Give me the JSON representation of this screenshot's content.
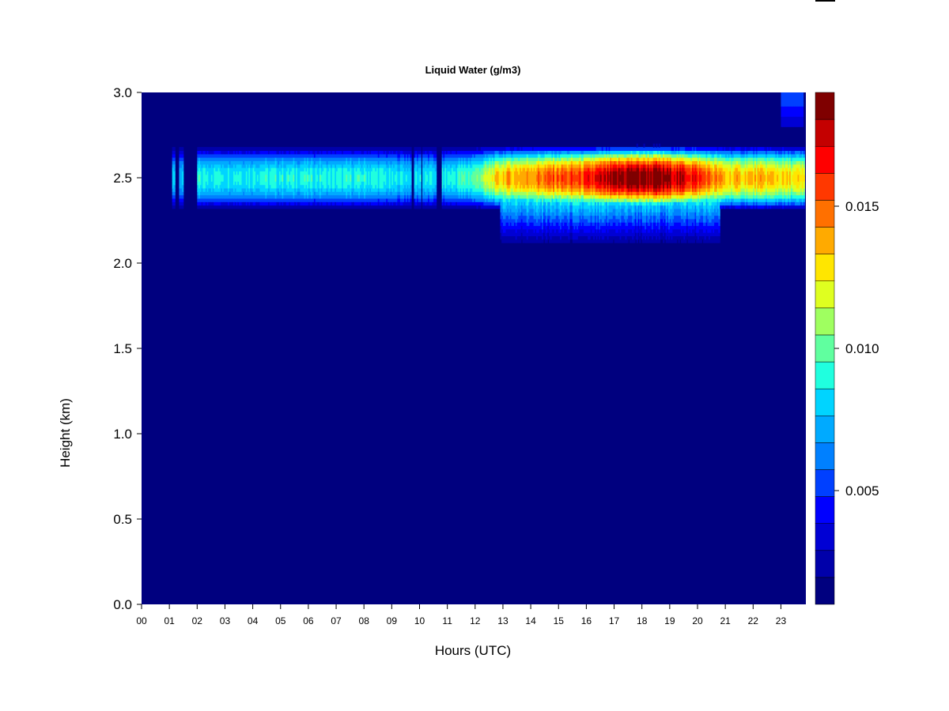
{
  "chart_data": {
    "type": "heatmap",
    "title": "Liquid Water (g/m3)",
    "xlabel": "Hours (UTC)",
    "ylabel": "Height (km)",
    "xlim": [
      0,
      24
    ],
    "ylim": [
      0.0,
      3.0
    ],
    "x_ticks": [
      0,
      1,
      2,
      3,
      4,
      5,
      6,
      7,
      8,
      9,
      10,
      11,
      12,
      13,
      14,
      15,
      16,
      17,
      18,
      19,
      20,
      21,
      22,
      23
    ],
    "x_tick_labels": [
      "00",
      "01",
      "02",
      "03",
      "04",
      "05",
      "06",
      "07",
      "08",
      "09",
      "10",
      "11",
      "12",
      "13",
      "14",
      "15",
      "16",
      "17",
      "18",
      "19",
      "20",
      "21",
      "22",
      "23"
    ],
    "y_ticks": [
      0.0,
      0.5,
      1.0,
      1.5,
      2.0,
      2.5,
      3.0
    ],
    "y_tick_labels": [
      "0.0",
      "0.5",
      "1.0",
      "1.5",
      "2.0",
      "2.5",
      "3.0"
    ],
    "colorbar": {
      "range": [
        0.001,
        0.019
      ],
      "ticks": [
        0.005,
        0.01,
        0.015
      ],
      "tick_labels": [
        "0.005",
        "0.010",
        "0.015"
      ],
      "colors": [
        "#00007F",
        "#0000AA",
        "#0000D4",
        "#0000FF",
        "#0040FF",
        "#0080FF",
        "#00AAFF",
        "#00D4FF",
        "#20FFDF",
        "#60FF9F",
        "#9FFF60",
        "#DFFF20",
        "#FFE600",
        "#FFAA00",
        "#FF7000",
        "#FF3800",
        "#FF0000",
        "#C40000",
        "#7F0000"
      ]
    },
    "cloud_layer": {
      "center_height_km": 2.5,
      "half_thickness_km": 0.2,
      "time_profile": [
        {
          "hour": 0.0,
          "peak": 0.0
        },
        {
          "hour": 1.1,
          "peak": 0.0
        },
        {
          "hour": 1.15,
          "peak": 0.008
        },
        {
          "hour": 1.3,
          "peak": 0.0
        },
        {
          "hour": 1.45,
          "peak": 0.008
        },
        {
          "hour": 1.6,
          "peak": 0.0
        },
        {
          "hour": 1.95,
          "peak": 0.0
        },
        {
          "hour": 2.0,
          "peak": 0.009
        },
        {
          "hour": 8.5,
          "peak": 0.009
        },
        {
          "hour": 9.0,
          "peak": 0.0085
        },
        {
          "hour": 9.7,
          "peak": 0.0085
        },
        {
          "hour": 10.8,
          "peak": 0.0085
        },
        {
          "hour": 12.0,
          "peak": 0.01
        },
        {
          "hour": 13.0,
          "peak": 0.0135
        },
        {
          "hour": 14.5,
          "peak": 0.015
        },
        {
          "hour": 16.0,
          "peak": 0.016
        },
        {
          "hour": 17.5,
          "peak": 0.019
        },
        {
          "hour": 18.5,
          "peak": 0.019
        },
        {
          "hour": 19.8,
          "peak": 0.017
        },
        {
          "hour": 21.0,
          "peak": 0.0135
        },
        {
          "hour": 22.5,
          "peak": 0.0135
        },
        {
          "hour": 23.8,
          "peak": 0.0125
        }
      ],
      "lower_extension": {
        "start_hour": 12.9,
        "end_hour": 20.8,
        "base_km": 2.05,
        "peak": 0.012
      },
      "gaps": [
        [
          1.6,
          2.0
        ],
        [
          9.7,
          9.8
        ],
        [
          10.05,
          10.1
        ],
        [
          10.6,
          10.8
        ]
      ]
    },
    "upper_patch": {
      "start_hour": 23.0,
      "end_hour": 23.8,
      "base_km": 2.8,
      "top_km": 3.0,
      "peak": 0.006
    }
  }
}
